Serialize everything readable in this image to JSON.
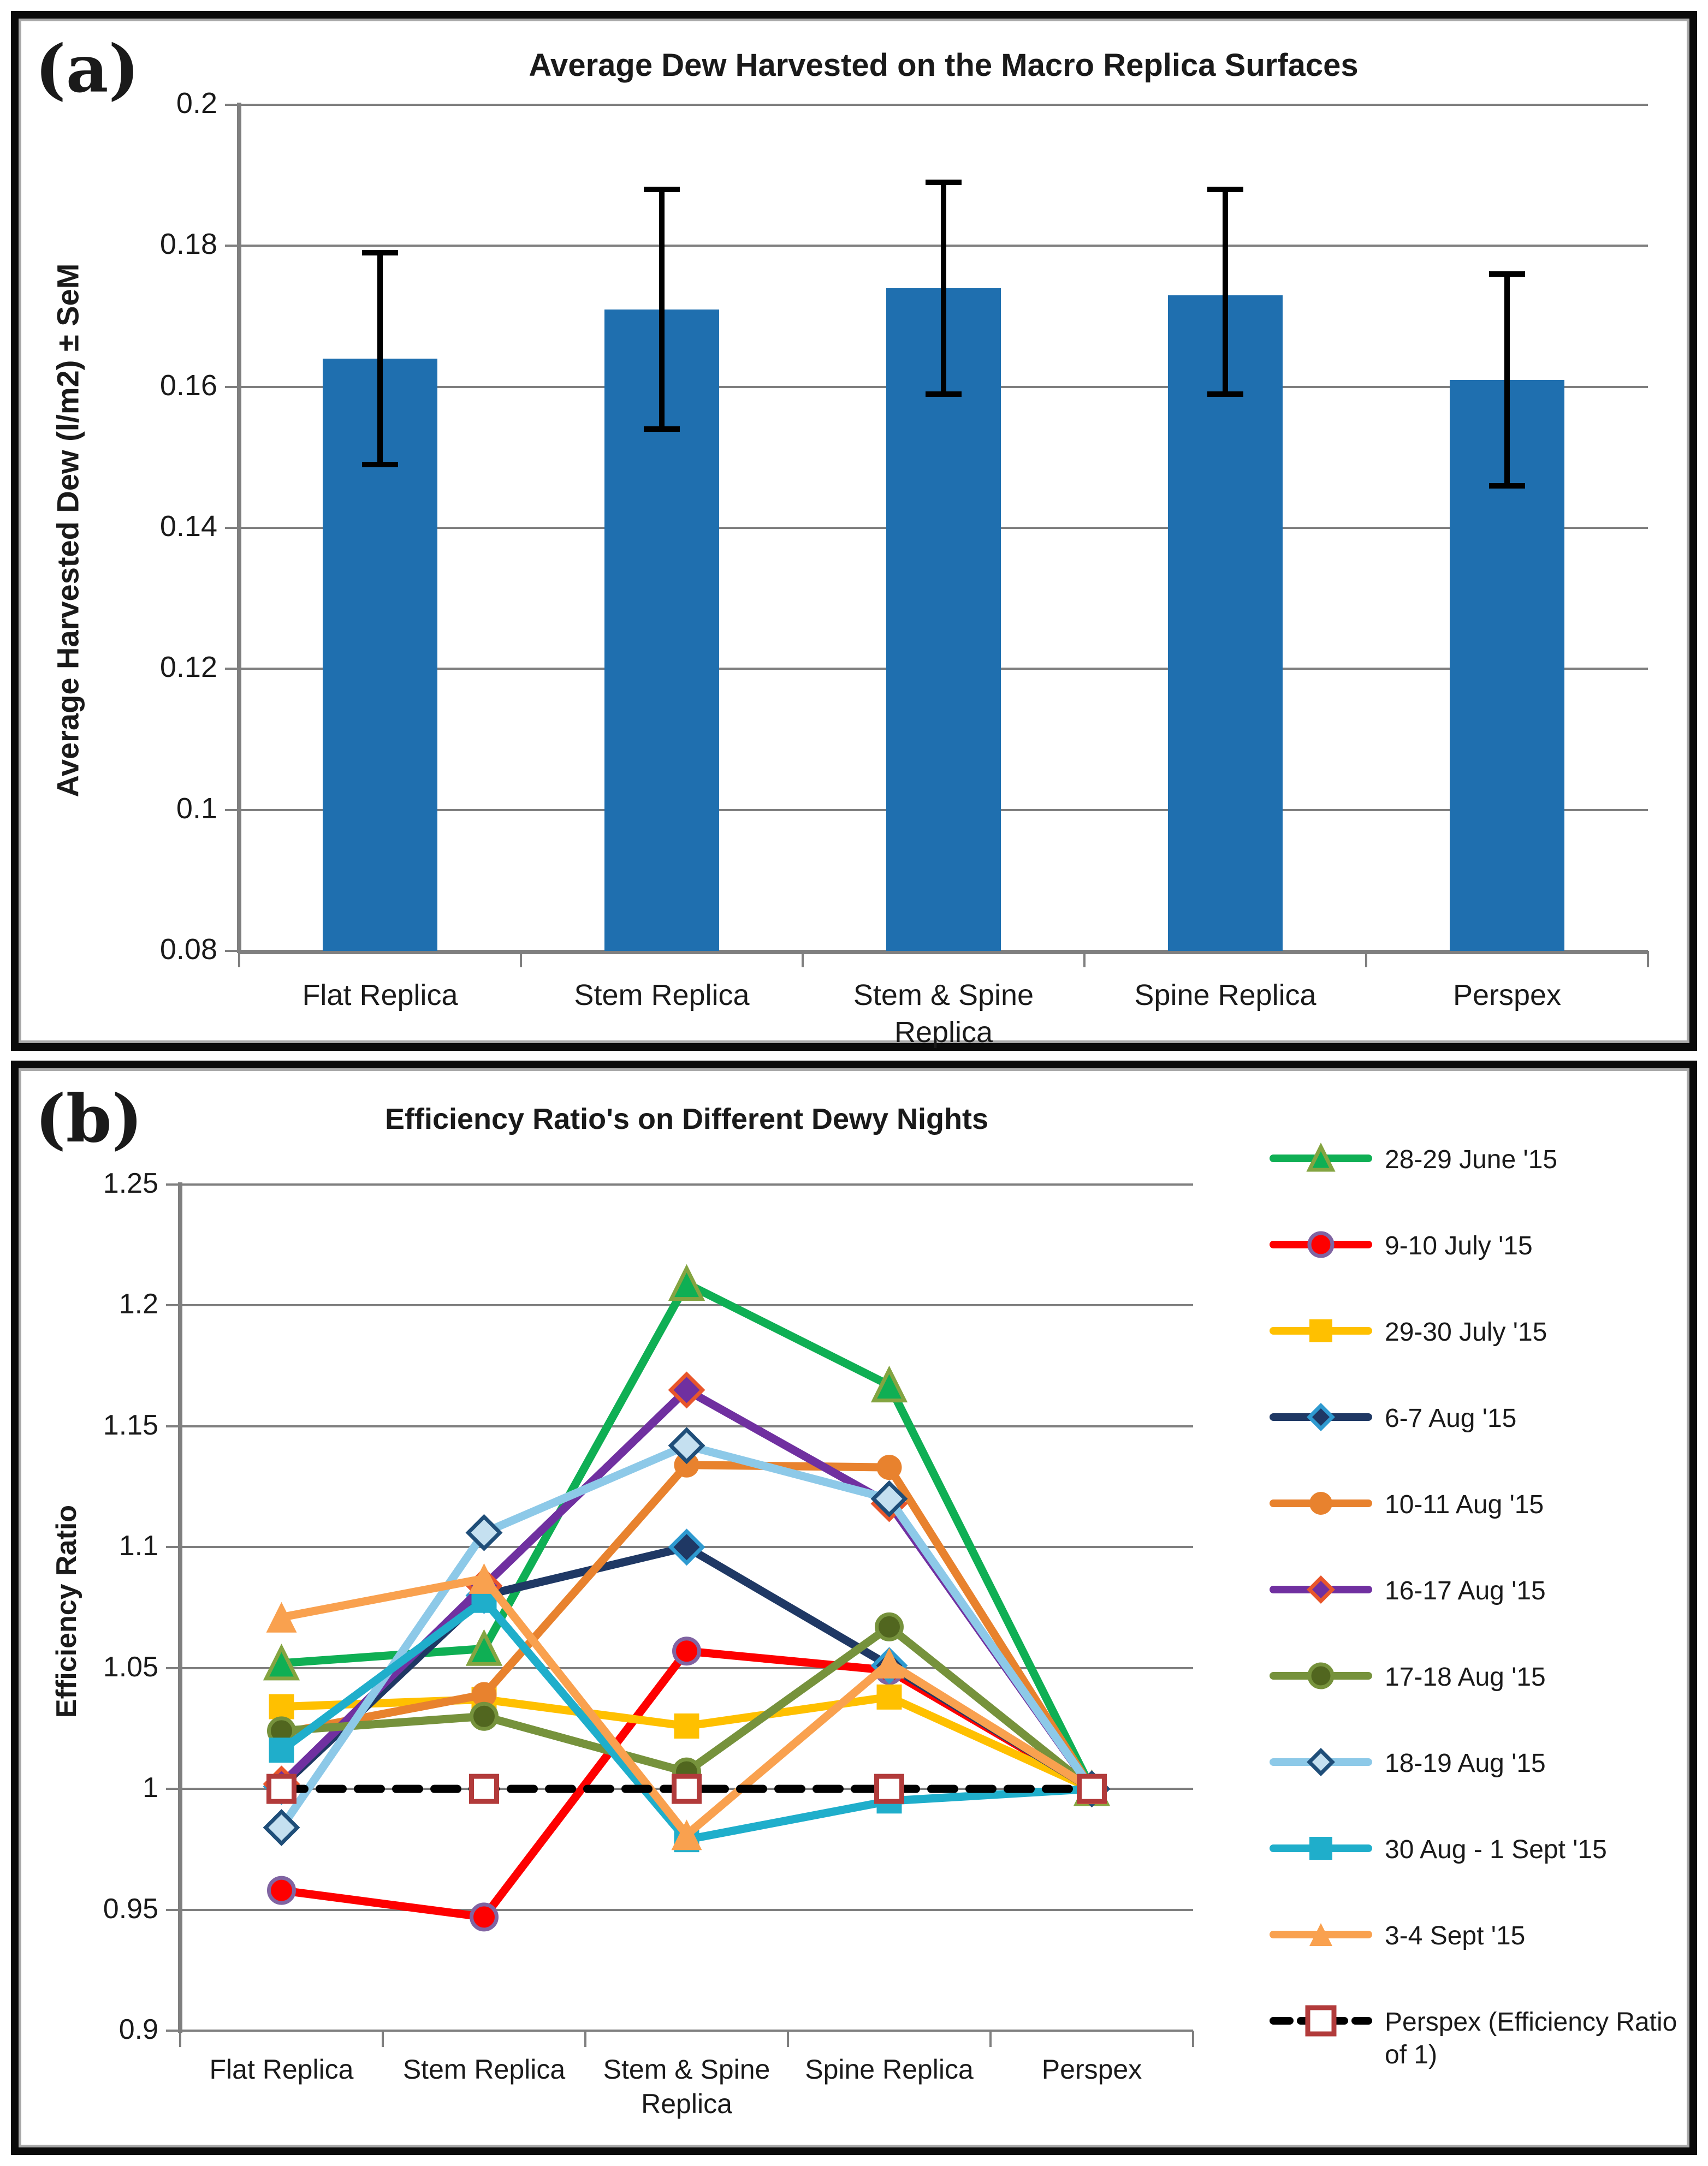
{
  "page": {
    "panel_a_letter": "(a)",
    "panel_b_letter": "(b)"
  },
  "colors": {
    "bar_blue": "#1f6faf",
    "gridline_gray": "#7f7f7f",
    "frame_black": "#0a0a0a",
    "frame_inner_gray": "#a9a9a9"
  },
  "chart_data": [
    {
      "type": "bar",
      "panel": "a",
      "title": "Average Dew Harvested on the Macro Replica Surfaces",
      "ylabel": "Average Harvested Dew (l/m2) ± SeM",
      "xlabel": "",
      "categories": [
        "Flat Replica",
        "Stem Replica",
        "Stem & Spine Replica",
        "Spine Replica",
        "Perspex"
      ],
      "values": [
        0.164,
        0.171,
        0.174,
        0.173,
        0.161
      ],
      "error_low": [
        0.149,
        0.154,
        0.159,
        0.159,
        0.146
      ],
      "error_high": [
        0.179,
        0.188,
        0.189,
        0.188,
        0.176
      ],
      "ylim": [
        0.08,
        0.2
      ],
      "yticks": [
        0.2,
        0.18,
        0.16,
        0.14,
        0.12,
        0.1,
        0.08
      ],
      "ytick_labels": [
        "0.2",
        "0.18",
        "0.16",
        "0.14",
        "0.12",
        "0.1",
        "0.08"
      ],
      "grid": true,
      "bar_color": "#1f6faf",
      "error_color": "#000000"
    },
    {
      "type": "line",
      "panel": "b",
      "title": "Efficiency Ratio's on Different Dewy Nights",
      "ylabel": "Efficiency Ratio",
      "xlabel": "",
      "categories": [
        "Flat Replica",
        "Stem Replica",
        "Stem & Spine Replica",
        "Spine Replica",
        "Perspex"
      ],
      "ylim": [
        0.9,
        1.25
      ],
      "yticks": [
        1.25,
        1.2,
        1.15,
        1.1,
        1.05,
        1,
        0.95,
        0.9
      ],
      "ytick_labels": [
        "1.25",
        "1.2",
        "1.15",
        "1.1",
        "1.05",
        "1",
        "0.95",
        "0.9"
      ],
      "grid": true,
      "legend_position": "right",
      "series": [
        {
          "name": "28-29 June '15",
          "values": [
            1.052,
            1.058,
            1.209,
            1.167,
            1.0
          ],
          "color": "#0faf54",
          "marker": "triangle",
          "marker_fill": "#0faf54",
          "marker_stroke": "#84a441",
          "dashed": false
        },
        {
          "name": "9-10 July '15",
          "values": [
            0.958,
            0.947,
            1.057,
            1.049,
            1.0
          ],
          "color": "#fe0000",
          "marker": "circle",
          "marker_fill": "#fe0000",
          "marker_stroke": "#8064a2",
          "dashed": false
        },
        {
          "name": "29-30 July '15",
          "values": [
            1.034,
            1.037,
            1.026,
            1.038,
            1.0
          ],
          "color": "#ffc000",
          "marker": "square",
          "marker_fill": "#ffc000",
          "marker_stroke": "none",
          "dashed": false
        },
        {
          "name": "6-7 Aug '15",
          "values": [
            1.001,
            1.08,
            1.1,
            1.051,
            1.0
          ],
          "color": "#1f3864",
          "marker": "diamond",
          "marker_fill": "#1f3864",
          "marker_stroke": "#2e9ad0",
          "dashed": false
        },
        {
          "name": "10-11 Aug '15",
          "values": [
            1.023,
            1.039,
            1.134,
            1.133,
            1.0
          ],
          "color": "#e8822e",
          "marker": "circle",
          "marker_fill": "#e8822e",
          "marker_stroke": "none",
          "dashed": false
        },
        {
          "name": "16-17 Aug '15",
          "values": [
            1.002,
            1.084,
            1.165,
            1.118,
            1.0
          ],
          "color": "#7030a0",
          "marker": "diamond",
          "marker_fill": "#7030a0",
          "marker_stroke": "#e8562b",
          "dashed": false
        },
        {
          "name": "17-18 Aug '15",
          "values": [
            1.024,
            1.03,
            1.007,
            1.067,
            1.0
          ],
          "color": "#76923c",
          "marker": "circle",
          "marker_fill": "#51661f",
          "marker_stroke": "#76923c",
          "dashed": false
        },
        {
          "name": "18-19 Aug '15",
          "values": [
            0.984,
            1.106,
            1.142,
            1.12,
            1.0
          ],
          "color": "#8dc9e8",
          "marker": "open-diamond",
          "marker_fill": "#c5e0f0",
          "marker_stroke": "#1f4e79",
          "dashed": false
        },
        {
          "name": "30 Aug - 1 Sept '15",
          "values": [
            1.016,
            1.078,
            0.979,
            0.995,
            1.0
          ],
          "color": "#1faecb",
          "marker": "square",
          "marker_fill": "#1faecb",
          "marker_stroke": "none",
          "dashed": false
        },
        {
          "name": "3-4 Sept '15",
          "values": [
            1.071,
            1.087,
            0.981,
            1.052,
            1.0
          ],
          "color": "#f9a14f",
          "marker": "triangle",
          "marker_fill": "#f9a14f",
          "marker_stroke": "none",
          "dashed": false
        },
        {
          "name": "Perspex (Efficiency Ratio of 1)",
          "values": [
            1.0,
            1.0,
            1.0,
            1.0,
            1.0
          ],
          "color": "#000000",
          "marker": "open-square",
          "marker_fill": "#ffffff",
          "marker_stroke": "#b23b3b",
          "dashed": true
        }
      ]
    }
  ]
}
